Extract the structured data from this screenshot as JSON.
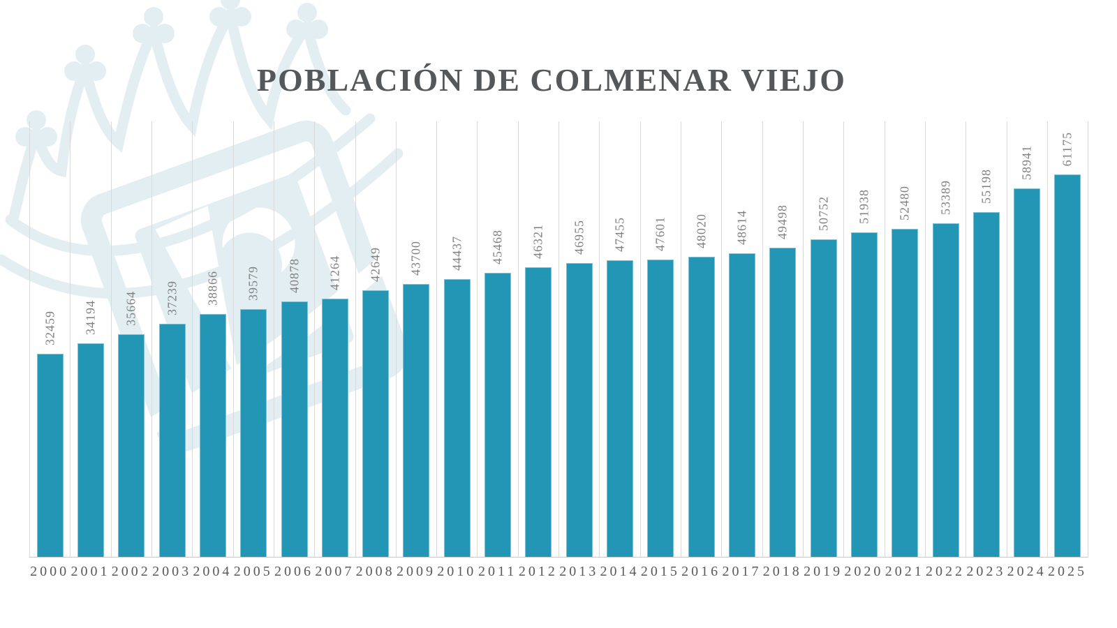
{
  "chart_data": {
    "type": "bar",
    "title": "POBLACIÓN DE COLMENAR VIEJO",
    "categories": [
      "2000",
      "2001",
      "2002",
      "2003",
      "2004",
      "2005",
      "2006",
      "2007",
      "2008",
      "2009",
      "2010",
      "2011",
      "2012",
      "2013",
      "2014",
      "2015",
      "2016",
      "2017",
      "2018",
      "2019",
      "2020",
      "2021",
      "2022",
      "2023",
      "2024",
      "2025"
    ],
    "values": [
      32459,
      34194,
      35664,
      37239,
      38866,
      39579,
      40878,
      41264,
      42649,
      43700,
      44437,
      45468,
      46321,
      46955,
      47455,
      47601,
      48020,
      48614,
      49498,
      50752,
      51938,
      52480,
      53389,
      55198,
      58941,
      61175
    ],
    "xlabel": "",
    "ylabel": "",
    "ylim": [
      0,
      61175
    ],
    "grid": "vertical-gridlines-only",
    "legend": "none",
    "value_labels": "rotated-90-above-bars"
  },
  "colors": {
    "bar": "#2296b4",
    "bar_border": "#7cc3d6",
    "grid": "#d9d9d9",
    "axis_line": "#c9c9c9",
    "title_text": "#54585a",
    "value_label": "#7f7f7f",
    "year_label": "#595959",
    "watermark": "#e3eef3"
  }
}
